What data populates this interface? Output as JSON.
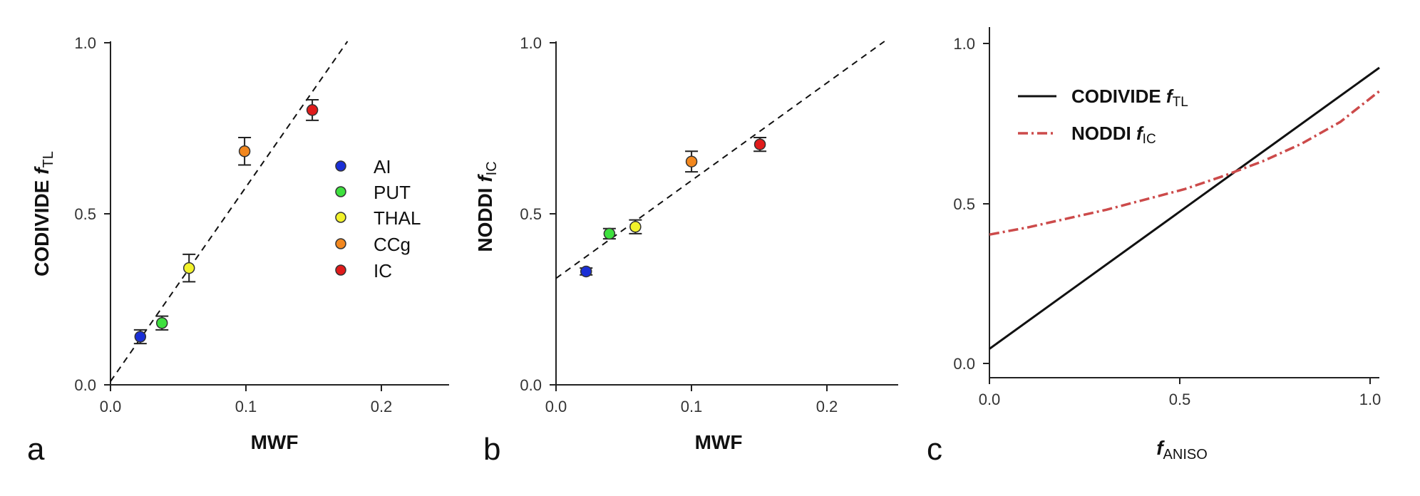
{
  "legend": {
    "entries": [
      {
        "label": "AI",
        "color": "#1a2fd6"
      },
      {
        "label": "PUT",
        "color": "#3ee03e"
      },
      {
        "label": "THAL",
        "color": "#f2f22a"
      },
      {
        "label": "CCg",
        "color": "#f2871e"
      },
      {
        "label": "IC",
        "color": "#e01b1b"
      }
    ]
  },
  "chart_data": [
    {
      "panel": "a",
      "type": "scatter",
      "xlabel": "MWF",
      "ylabel": {
        "main": "CODIVIDE ",
        "italic": "f",
        "sub": "TL"
      },
      "xlim": [
        0,
        0.25
      ],
      "ylim": [
        0,
        1.0
      ],
      "xticks": [
        "0.0",
        "0.1",
        "0.2"
      ],
      "yticks": [
        "0.0",
        "0.5",
        "1.0"
      ],
      "points": [
        {
          "name": "AI",
          "x": 0.022,
          "y": 0.14,
          "err": 0.02,
          "color": "#1a2fd6"
        },
        {
          "name": "PUT",
          "x": 0.038,
          "y": 0.18,
          "err": 0.02,
          "color": "#3ee03e"
        },
        {
          "name": "THAL",
          "x": 0.058,
          "y": 0.34,
          "err": 0.04,
          "color": "#f2f22a"
        },
        {
          "name": "CCg",
          "x": 0.099,
          "y": 0.68,
          "err": 0.04,
          "color": "#f2871e"
        },
        {
          "name": "IC",
          "x": 0.149,
          "y": 0.8,
          "err": 0.03,
          "color": "#e01b1b"
        }
      ],
      "fit_line": {
        "x": [
          0.0,
          0.175
        ],
        "y": [
          0.01,
          1.0
        ],
        "style": "dashed"
      }
    },
    {
      "panel": "b",
      "type": "scatter",
      "xlabel": "MWF",
      "ylabel": {
        "main": "NODDI ",
        "italic": "f",
        "sub": "IC"
      },
      "xlim": [
        0,
        0.25
      ],
      "ylim": [
        0,
        1.0
      ],
      "xticks": [
        "0.0",
        "0.1",
        "0.2"
      ],
      "yticks": [
        "0.0",
        "0.5",
        "1.0"
      ],
      "points": [
        {
          "name": "AI",
          "x": 0.022,
          "y": 0.33,
          "err": 0.01,
          "color": "#1a2fd6"
        },
        {
          "name": "PUT",
          "x": 0.039,
          "y": 0.44,
          "err": 0.015,
          "color": "#3ee03e"
        },
        {
          "name": "THAL",
          "x": 0.058,
          "y": 0.46,
          "err": 0.02,
          "color": "#f2f22a"
        },
        {
          "name": "CCg",
          "x": 0.099,
          "y": 0.65,
          "err": 0.03,
          "color": "#f2871e"
        },
        {
          "name": "IC",
          "x": 0.149,
          "y": 0.7,
          "err": 0.02,
          "color": "#e01b1b"
        }
      ],
      "fit_line": {
        "x": [
          0.0,
          0.24
        ],
        "y": [
          0.31,
          1.0
        ],
        "style": "dashed"
      }
    },
    {
      "panel": "c",
      "type": "line",
      "xlabel": {
        "italic": "f",
        "sub": "ANISO"
      },
      "xlim": [
        0,
        1.0
      ],
      "ylim": [
        -0.05,
        1.05
      ],
      "xticks": [
        "0.0",
        "0.5",
        "1.0"
      ],
      "yticks": [
        "0.0",
        "0.5",
        "1.0"
      ],
      "series": [
        {
          "name": "CODIVIDE f_TL",
          "legend": {
            "main": "CODIVIDE ",
            "italic": "f",
            "sub": "TL"
          },
          "color": "#111111",
          "style": "solid",
          "x": [
            0.0,
            1.0
          ],
          "y": [
            0.0,
            0.96
          ]
        },
        {
          "name": "NODDI f_IC",
          "legend": {
            "main": "NODDI ",
            "italic": "f",
            "sub": "IC"
          },
          "color": "#cc4a4a",
          "style": "dashdot",
          "x": [
            0.0,
            0.1,
            0.2,
            0.3,
            0.4,
            0.5,
            0.6,
            0.65,
            0.7,
            0.8,
            0.9,
            1.0
          ],
          "y": [
            0.39,
            0.415,
            0.445,
            0.475,
            0.51,
            0.545,
            0.59,
            0.615,
            0.64,
            0.7,
            0.775,
            0.88
          ]
        }
      ]
    }
  ]
}
